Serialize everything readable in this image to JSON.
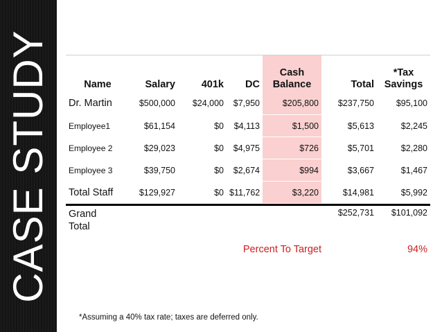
{
  "sidebar": {
    "title": "CASE STUDY"
  },
  "table": {
    "headers": {
      "name": "Name",
      "salary": "Salary",
      "k401": "401k",
      "dc": "DC",
      "cash_line1": "Cash",
      "cash_line2": "Balance",
      "total": "Total",
      "tax_line1": "*Tax",
      "tax_line2": "Savings"
    },
    "rows": [
      {
        "name": "Dr. Martin",
        "salary": "$500,000",
        "k401": "$24,000",
        "dc": "$7,950",
        "cash": "$205,800",
        "total": "$237,750",
        "tax": "$95,100"
      },
      {
        "name": "Employee1",
        "salary": "$61,154",
        "k401": "$0",
        "dc": "$4,113",
        "cash": "$1,500",
        "total": "$5,613",
        "tax": "$2,245"
      },
      {
        "name": "Employee 2",
        "salary": "$29,023",
        "k401": "$0",
        "dc": "$4,975",
        "cash": "$726",
        "total": "$5,701",
        "tax": "$2,280"
      },
      {
        "name": "Employee 3",
        "salary": "$39,750",
        "k401": "$0",
        "dc": "$2,674",
        "cash": "$994",
        "total": "$3,667",
        "tax": "$1,467"
      },
      {
        "name": "Total Staff",
        "salary": "$129,927",
        "k401": "$0",
        "dc": "$11,762",
        "cash": "$3,220",
        "total": "$14,981",
        "tax": "$5,992"
      }
    ],
    "grand": {
      "label_line1": "Grand",
      "label_line2": "Total",
      "total": "$252,731",
      "tax": "$101,092"
    },
    "target": {
      "label": "Percent To Target",
      "value": "94%"
    }
  },
  "footnote": "*Assuming a 40% tax rate; taxes are deferred only.",
  "colors": {
    "cash_column_bg": "#fbd0d0",
    "target_text": "#cc1e1e",
    "sidebar_bg": "#141414"
  }
}
